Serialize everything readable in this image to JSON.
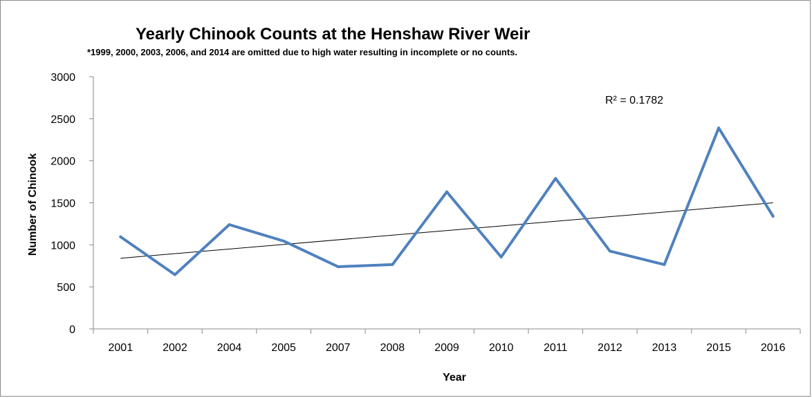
{
  "chart_data": {
    "type": "line",
    "title": "Yearly Chinook Counts at the Henshaw River Weir",
    "subtitle": "*1999, 2000, 2003, 2006, and 2014 are omitted due to high water resulting in incomplete  or no counts.",
    "xlabel": "Year",
    "ylabel": "Number of Chinook",
    "categories": [
      "2001",
      "2002",
      "2004",
      "2005",
      "2007",
      "2008",
      "2009",
      "2010",
      "2011",
      "2012",
      "2013",
      "2015",
      "2016"
    ],
    "series": [
      {
        "values": [
          1095,
          645,
          1240,
          1045,
          740,
          765,
          1630,
          855,
          1790,
          925,
          765,
          2390,
          1340
        ],
        "color": "#4f81bd"
      }
    ],
    "trendline": {
      "type": "linear",
      "start_value": 840,
      "end_value": 1500,
      "color": "#000000",
      "r_squared_label": "R² = 0.1782"
    },
    "ylim": [
      0,
      3000
    ],
    "y_ticks": [
      "0",
      "500",
      "1000",
      "1500",
      "2000",
      "2500",
      "3000"
    ],
    "grid": false,
    "legend": "none"
  }
}
